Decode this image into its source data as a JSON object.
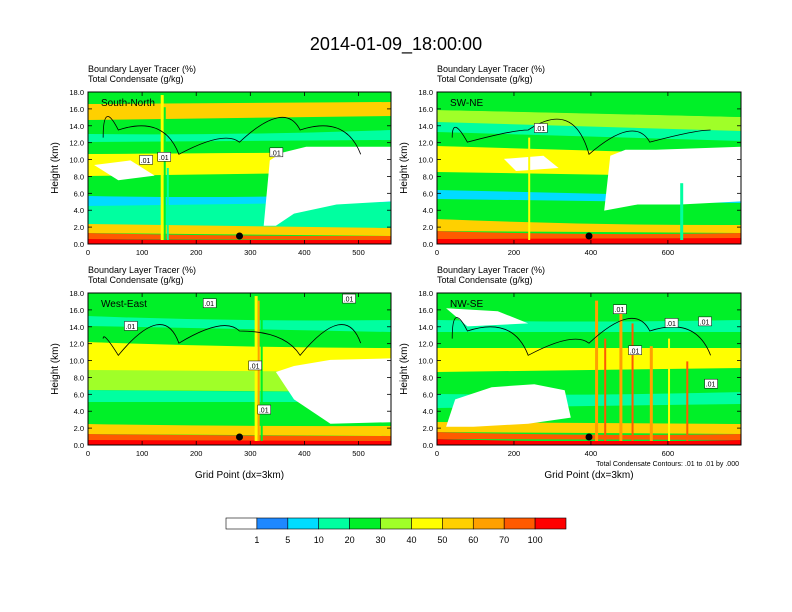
{
  "figure_title": "2014-01-09_18:00:00",
  "colors": {
    "scale": [
      "#ffffff",
      "#1e88ff",
      "#00dcff",
      "#00ffa0",
      "#00f028",
      "#a0ff28",
      "#ffff00",
      "#ffd000",
      "#ffa000",
      "#ff5a00",
      "#ff0000"
    ],
    "contour": "#000000",
    "frame": "#000000",
    "background": "#ffffff"
  },
  "chart_data": [
    {
      "type": "heatmap",
      "panel_label": "South-North",
      "title_line1": "Boundary Layer Tracer    (%)",
      "title_line2": "Total Condensate    (g/kg)",
      "ylabel": "Height (km)",
      "xlabel": "",
      "xlim": [
        0,
        560
      ],
      "ylim": [
        0,
        18
      ],
      "xticks": [
        0,
        100,
        200,
        300,
        400,
        500
      ],
      "yticks": [
        "0.0",
        "2.0",
        "4.0",
        "6.0",
        "8.0",
        "10.0",
        "12.0",
        "14.0",
        "16.0",
        "18.0"
      ],
      "contour_labels": [
        ".01",
        ".01",
        ".01"
      ],
      "marker_x": 280
    },
    {
      "type": "heatmap",
      "panel_label": "SW-NE",
      "title_line1": "Boundary Layer Tracer    (%)",
      "title_line2": "Total Condensate    (g/kg)",
      "ylabel": "Height (km)",
      "xlabel": "",
      "xlim": [
        0,
        790
      ],
      "ylim": [
        0,
        18
      ],
      "xticks": [
        0,
        200,
        400,
        600
      ],
      "yticks": [
        "0.0",
        "2.0",
        "4.0",
        "6.0",
        "8.0",
        "10.0",
        "12.0",
        "14.0",
        "16.0",
        "18.0"
      ],
      "contour_labels": [
        ".01"
      ],
      "marker_x": 395
    },
    {
      "type": "heatmap",
      "panel_label": "West-East",
      "title_line1": "Boundary Layer Tracer    (%)",
      "title_line2": "Total Condensate    (g/kg)",
      "ylabel": "Height (km)",
      "xlabel": "Grid Point (dx=3km)",
      "xlim": [
        0,
        560
      ],
      "ylim": [
        0,
        18
      ],
      "xticks": [
        0,
        100,
        200,
        300,
        400,
        500
      ],
      "yticks": [
        "0.0",
        "2.0",
        "4.0",
        "6.0",
        "8.0",
        "10.0",
        "12.0",
        "14.0",
        "16.0",
        "18.0"
      ],
      "contour_labels": [
        ".01",
        ".01",
        ".01",
        ".01",
        ".01"
      ],
      "marker_x": 280
    },
    {
      "type": "heatmap",
      "panel_label": "NW-SE",
      "title_line1": "Boundary Layer Tracer    (%)",
      "title_line2": "Total Condensate    (g/kg)",
      "ylabel": "Height (km)",
      "xlabel": "Grid Point (dx=3km)",
      "xlim": [
        0,
        790
      ],
      "ylim": [
        0,
        18
      ],
      "xticks": [
        0,
        200,
        400,
        600
      ],
      "yticks": [
        "0.0",
        "2.0",
        "4.0",
        "6.0",
        "8.0",
        "10.0",
        "12.0",
        "14.0",
        "16.0",
        "18.0"
      ],
      "contour_labels": [
        ".01",
        ".01",
        ".01",
        ".01",
        ".01"
      ],
      "marker_x": 395,
      "footnote": "Total Condensate Contours: .01 to .01 by .000"
    }
  ],
  "colorbar": {
    "levels": [
      "1",
      "5",
      "10",
      "20",
      "30",
      "40",
      "50",
      "60",
      "70",
      "100"
    ]
  }
}
